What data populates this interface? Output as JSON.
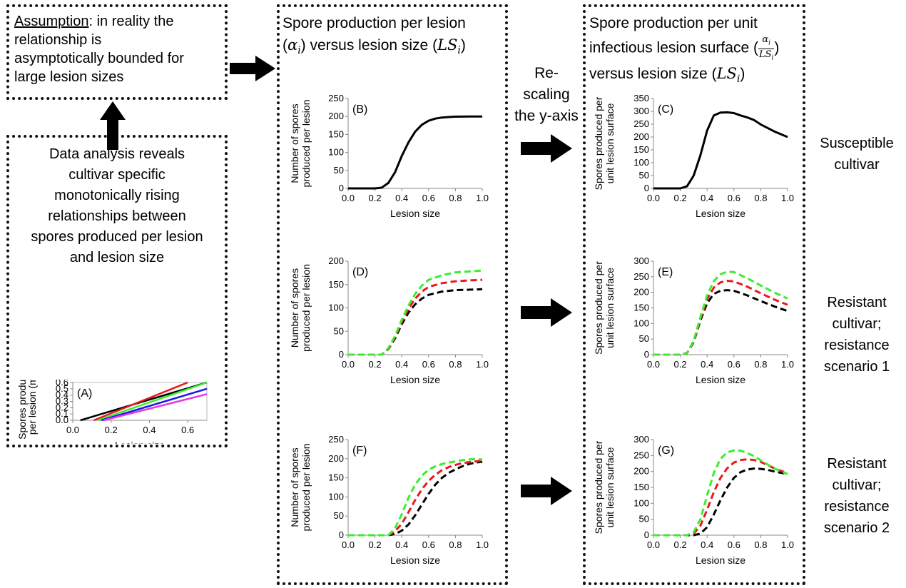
{
  "assumption": {
    "underlined": "Assumption",
    "rest_line1": ": in reality the",
    "line2": "relationship is",
    "line3": "asymptotically bounded for",
    "line4": "large lesion sizes"
  },
  "data_analysis": {
    "lines": [
      "Data analysis reveals",
      "cultivar specific",
      "monotonically rising",
      "relationships between",
      "spores produced per lesion",
      "and lesion size"
    ]
  },
  "middle_column": {
    "header_line1": "Spore production per lesion",
    "header_line2_pre": "(",
    "alpha": "α",
    "sub_i": "i",
    "header_line2_mid": ") versus lesion size (",
    "ls": "LS",
    "header_line2_post": ")"
  },
  "right_column": {
    "header_line1": "Spore production per unit",
    "header_line2": "infectious lesion surface (",
    "frac_num": "α",
    "frac_den": "LS",
    "sub_i": "i",
    "header_line2_post": ")",
    "header_line3_pre": "versus lesion size (",
    "ls": "LS",
    "header_line3_post": ")"
  },
  "rescaling": {
    "lines": [
      "Re-",
      "scaling",
      "the y-axis"
    ]
  },
  "side_labels": {
    "row1": [
      "Susceptible",
      "cultivar"
    ],
    "row2": [
      "Resistant",
      "cultivar;",
      "resistance",
      "scenario 1"
    ],
    "row3": [
      "Resistant",
      "cultivar;",
      "resistance",
      "scenario 2"
    ]
  },
  "colors": {
    "black": "#000000",
    "red": "#e8191e",
    "green": "#3bed2e",
    "blue": "#1a16e8",
    "magenta": "#e638e6"
  },
  "chart_data": [
    {
      "id": "A",
      "panel_label": "(A)",
      "type": "line",
      "xlabel": "Lesion size",
      "ylabel_lines": [
        "Spores produced",
        "per lesion (mg)"
      ],
      "xlim": [
        0,
        0.7
      ],
      "ylim": [
        0,
        0.6
      ],
      "xticks": [
        "0.0",
        "0.2",
        "0.4",
        "0.6"
      ],
      "yticks": [
        "0.0",
        "0.1",
        "0.2",
        "0.3",
        "0.4",
        "0.5",
        "0.6"
      ],
      "series": [
        {
          "color": "#000000",
          "dashed": false,
          "x": [
            0.04,
            0.7
          ],
          "y": [
            0,
            0.6
          ]
        },
        {
          "color": "#e8191e",
          "dashed": false,
          "x": [
            0.11,
            0.6
          ],
          "y": [
            0,
            0.6
          ]
        },
        {
          "color": "#3bed2e",
          "dashed": false,
          "x": [
            0.13,
            0.7
          ],
          "y": [
            0,
            0.6
          ]
        },
        {
          "color": "#1a16e8",
          "dashed": false,
          "x": [
            0.15,
            0.7
          ],
          "y": [
            0,
            0.5
          ]
        },
        {
          "color": "#e638e6",
          "dashed": false,
          "x": [
            0.16,
            0.7
          ],
          "y": [
            0,
            0.415
          ]
        }
      ]
    },
    {
      "id": "B",
      "panel_label": "(B)",
      "type": "line",
      "xlabel": "Lesion size",
      "ylabel_lines": [
        "Number of spores",
        "produced per lesion"
      ],
      "xlim": [
        0,
        1
      ],
      "ylim": [
        0,
        250
      ],
      "xticks": [
        "0.0",
        "0.2",
        "0.4",
        "0.6",
        "0.8",
        "1.0"
      ],
      "yticks": [
        "0",
        "50",
        "100",
        "150",
        "200",
        "250"
      ],
      "series": [
        {
          "color": "#000000",
          "dashed": false,
          "x": [
            0,
            0.2,
            0.25,
            0.3,
            0.35,
            0.4,
            0.45,
            0.5,
            0.55,
            0.6,
            0.65,
            0.7,
            0.75,
            0.8,
            0.9,
            1.0
          ],
          "y": [
            0,
            0,
            2,
            15,
            45,
            90,
            128,
            158,
            177,
            188,
            194,
            197,
            198.5,
            199.5,
            200,
            200
          ]
        }
      ]
    },
    {
      "id": "C",
      "panel_label": "(C)",
      "type": "line",
      "xlabel": "Lesion size",
      "ylabel_lines": [
        "Spores produced per",
        "unit lesion surface"
      ],
      "xlim": [
        0,
        1
      ],
      "ylim": [
        0,
        350
      ],
      "xticks": [
        "0.0",
        "0.2",
        "0.4",
        "0.6",
        "0.8",
        "1.0"
      ],
      "yticks": [
        "0",
        "50",
        "100",
        "150",
        "200",
        "250",
        "300",
        "350"
      ],
      "series": [
        {
          "color": "#000000",
          "dashed": false,
          "x": [
            0,
            0.2,
            0.25,
            0.3,
            0.35,
            0.4,
            0.45,
            0.5,
            0.55,
            0.6,
            0.65,
            0.7,
            0.75,
            0.8,
            0.9,
            1.0
          ],
          "y": [
            0,
            0,
            8,
            50,
            129,
            225,
            284,
            295,
            296,
            293,
            284,
            276,
            266,
            249,
            222,
            200
          ]
        }
      ]
    },
    {
      "id": "D",
      "panel_label": "(D)",
      "type": "line",
      "xlabel": "Lesion size",
      "ylabel_lines": [
        "Number of spores",
        "produced per lesion"
      ],
      "xlim": [
        0,
        1
      ],
      "ylim": [
        0,
        200
      ],
      "xticks": [
        "0.0",
        "0.2",
        "0.4",
        "0.6",
        "0.8",
        "1.0"
      ],
      "yticks": [
        "0",
        "50",
        "100",
        "150",
        "200"
      ],
      "series": [
        {
          "color": "#000000",
          "dashed": true,
          "x": [
            0,
            0.25,
            0.3,
            0.35,
            0.4,
            0.45,
            0.5,
            0.55,
            0.6,
            0.7,
            0.8,
            0.9,
            1.0
          ],
          "y": [
            0,
            0,
            12,
            35,
            65,
            90,
            108,
            120,
            128,
            135,
            138,
            139,
            140
          ]
        },
        {
          "color": "#e8191e",
          "dashed": true,
          "x": [
            0,
            0.25,
            0.3,
            0.35,
            0.4,
            0.45,
            0.5,
            0.55,
            0.6,
            0.7,
            0.8,
            0.9,
            1.0
          ],
          "y": [
            0,
            0,
            13,
            38,
            70,
            98,
            120,
            135,
            145,
            153,
            157,
            159,
            160
          ]
        },
        {
          "color": "#3bed2e",
          "dashed": true,
          "x": [
            0,
            0.25,
            0.3,
            0.35,
            0.4,
            0.45,
            0.5,
            0.55,
            0.6,
            0.7,
            0.8,
            0.9,
            1.0
          ],
          "y": [
            0,
            0,
            14,
            40,
            75,
            105,
            130,
            148,
            160,
            170,
            176,
            178,
            180
          ]
        }
      ]
    },
    {
      "id": "E",
      "panel_label": "(E)",
      "type": "line",
      "xlabel": "Lesion size",
      "ylabel_lines": [
        "Spores produced per",
        "unit lesion surface"
      ],
      "xlim": [
        0,
        1
      ],
      "ylim": [
        0,
        300
      ],
      "xticks": [
        "0.0",
        "0.2",
        "0.4",
        "0.6",
        "0.8",
        "1.0"
      ],
      "yticks": [
        "0",
        "50",
        "100",
        "150",
        "200",
        "250",
        "300"
      ],
      "series": [
        {
          "color": "#000000",
          "dashed": true,
          "x": [
            0,
            0.2,
            0.25,
            0.3,
            0.35,
            0.4,
            0.45,
            0.5,
            0.55,
            0.6,
            0.7,
            0.8,
            0.9,
            1.0
          ],
          "y": [
            0,
            0,
            5,
            40,
            110,
            165,
            195,
            205,
            207,
            205,
            190,
            172,
            155,
            140
          ]
        },
        {
          "color": "#e8191e",
          "dashed": true,
          "x": [
            0,
            0.2,
            0.25,
            0.3,
            0.35,
            0.4,
            0.45,
            0.5,
            0.55,
            0.6,
            0.7,
            0.8,
            0.9,
            1.0
          ],
          "y": [
            0,
            0,
            5,
            42,
            115,
            178,
            215,
            232,
            237,
            235,
            218,
            197,
            177,
            160
          ]
        },
        {
          "color": "#3bed2e",
          "dashed": true,
          "x": [
            0,
            0.2,
            0.25,
            0.3,
            0.35,
            0.4,
            0.45,
            0.5,
            0.55,
            0.6,
            0.7,
            0.8,
            0.9,
            1.0
          ],
          "y": [
            0,
            0,
            5,
            45,
            120,
            190,
            236,
            258,
            266,
            265,
            245,
            222,
            200,
            180
          ]
        }
      ]
    },
    {
      "id": "F",
      "panel_label": "(F)",
      "type": "line",
      "xlabel": "Lesion size",
      "ylabel_lines": [
        "Number of spores",
        "produced per lesion"
      ],
      "xlim": [
        0,
        1
      ],
      "ylim": [
        0,
        250
      ],
      "xticks": [
        "0.0",
        "0.2",
        "0.4",
        "0.6",
        "0.8",
        "1.0"
      ],
      "yticks": [
        "0",
        "50",
        "100",
        "150",
        "200",
        "250"
      ],
      "series": [
        {
          "color": "#000000",
          "dashed": true,
          "x": [
            0,
            0.3,
            0.35,
            0.4,
            0.45,
            0.5,
            0.55,
            0.6,
            0.65,
            0.7,
            0.75,
            0.8,
            0.85,
            0.9,
            0.95,
            1.0
          ],
          "y": [
            0,
            0,
            3,
            12,
            28,
            52,
            80,
            108,
            132,
            150,
            163,
            172,
            180,
            186,
            190,
            192
          ]
        },
        {
          "color": "#e8191e",
          "dashed": true,
          "x": [
            0,
            0.3,
            0.35,
            0.4,
            0.45,
            0.5,
            0.55,
            0.6,
            0.65,
            0.7,
            0.75,
            0.8,
            0.85,
            0.9,
            0.95,
            1.0
          ],
          "y": [
            0,
            0,
            10,
            30,
            60,
            92,
            120,
            142,
            158,
            170,
            178,
            184,
            188,
            191,
            193,
            195
          ]
        },
        {
          "color": "#3bed2e",
          "dashed": true,
          "x": [
            0,
            0.3,
            0.35,
            0.4,
            0.45,
            0.5,
            0.55,
            0.6,
            0.65,
            0.7,
            0.75,
            0.8,
            0.85,
            0.9,
            0.95,
            1.0
          ],
          "y": [
            0,
            0,
            18,
            55,
            98,
            132,
            156,
            171,
            180,
            186,
            190,
            193,
            196,
            198,
            199,
            198
          ]
        }
      ]
    },
    {
      "id": "G",
      "panel_label": "(G)",
      "type": "line",
      "xlabel": "Lesion size",
      "ylabel_lines": [
        "Spores produced per",
        "unit lesion surface"
      ],
      "xlim": [
        0,
        1
      ],
      "ylim": [
        0,
        300
      ],
      "xticks": [
        "0.0",
        "0.2",
        "0.4",
        "0.6",
        "0.8",
        "1.0"
      ],
      "yticks": [
        "0",
        "50",
        "100",
        "150",
        "200",
        "250",
        "300"
      ],
      "series": [
        {
          "color": "#000000",
          "dashed": true,
          "x": [
            0,
            0.3,
            0.35,
            0.4,
            0.45,
            0.5,
            0.55,
            0.6,
            0.65,
            0.7,
            0.75,
            0.8,
            0.85,
            0.9,
            0.95,
            1.0
          ],
          "y": [
            0,
            0,
            5,
            25,
            65,
            110,
            150,
            180,
            198,
            206,
            209,
            208,
            205,
            200,
            196,
            192
          ]
        },
        {
          "color": "#e8191e",
          "dashed": true,
          "x": [
            0,
            0.25,
            0.3,
            0.35,
            0.4,
            0.45,
            0.5,
            0.55,
            0.6,
            0.65,
            0.7,
            0.75,
            0.8,
            0.85,
            0.9,
            0.95,
            1.0
          ],
          "y": [
            0,
            0,
            5,
            30,
            80,
            135,
            180,
            210,
            228,
            236,
            238,
            236,
            230,
            220,
            210,
            202,
            195
          ]
        },
        {
          "color": "#3bed2e",
          "dashed": true,
          "x": [
            0,
            0.25,
            0.3,
            0.35,
            0.4,
            0.45,
            0.5,
            0.55,
            0.6,
            0.65,
            0.7,
            0.75,
            0.8,
            0.85,
            0.9,
            0.95,
            1.0
          ],
          "y": [
            0,
            0,
            10,
            50,
            125,
            195,
            240,
            260,
            266,
            265,
            258,
            248,
            235,
            222,
            210,
            200,
            192
          ]
        }
      ]
    }
  ]
}
